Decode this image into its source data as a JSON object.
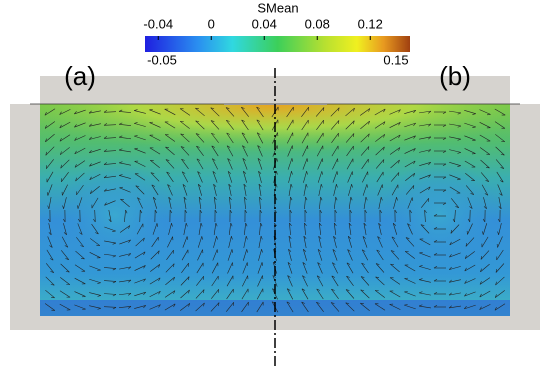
{
  "colorbar": {
    "title": "SMean",
    "range": [
      -0.05,
      0.15
    ],
    "ticks": [
      -0.04,
      0,
      0.04,
      0.08,
      0.12
    ]
  },
  "panels": [
    "(a)",
    "(b)"
  ]
}
